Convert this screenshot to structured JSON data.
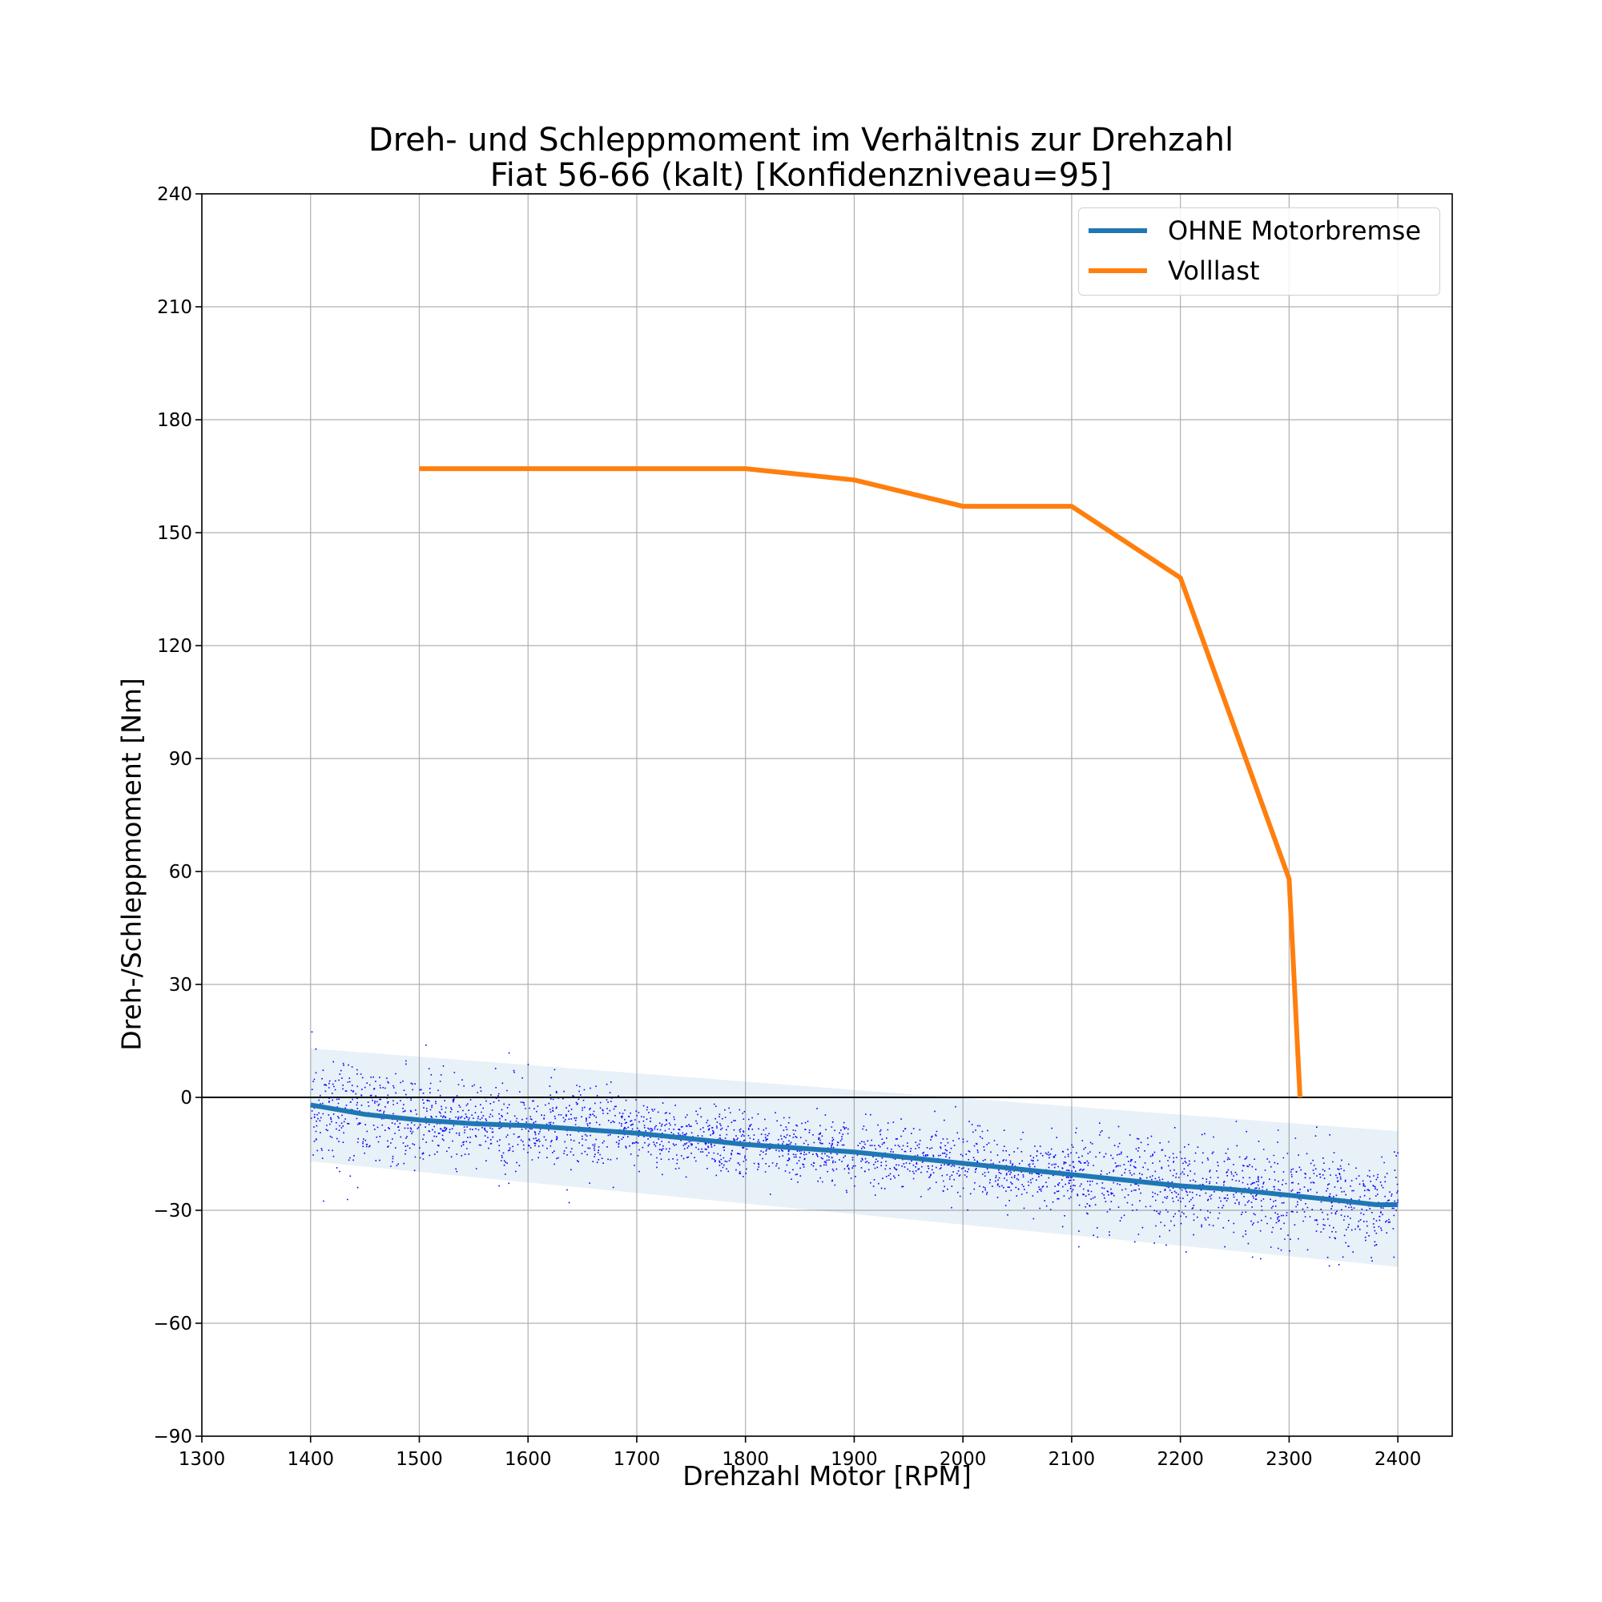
{
  "chart_data": {
    "type": "line",
    "title": [
      "Dreh- und Schleppmoment im Verhältnis zur Drehzahl",
      "Fiat 56-66 (kalt) [Konfidenzniveau=95]"
    ],
    "xlabel": "Drehzahl Motor [RPM]",
    "ylabel": "Dreh-/Schleppmoment [Nm]",
    "xlim": [
      1300,
      2450
    ],
    "ylim": [
      -90,
      240
    ],
    "xticks": [
      1300,
      1400,
      1500,
      1600,
      1700,
      1800,
      1900,
      2000,
      2100,
      2200,
      2300,
      2400
    ],
    "yticks": [
      -90,
      -60,
      -30,
      0,
      30,
      60,
      90,
      120,
      150,
      180,
      210,
      240
    ],
    "ytick_labels": [
      "−90",
      "−60",
      "−30",
      "0",
      "30",
      "60",
      "90",
      "120",
      "150",
      "180",
      "210",
      "240"
    ],
    "grid": true,
    "legend_position": "top-right",
    "zero_line": true,
    "series": [
      {
        "name": "OHNE Motorbremse",
        "color": "#1f77b4",
        "x": [
          1400,
          1420,
          1450,
          1500,
          1550,
          1600,
          1650,
          1700,
          1750,
          1800,
          1850,
          1900,
          1950,
          2000,
          2050,
          2100,
          2150,
          2200,
          2250,
          2300,
          2350,
          2380,
          2400
        ],
        "y": [
          -2,
          -3,
          -4.5,
          -6,
          -7,
          -7.5,
          -8.5,
          -9.5,
          -11,
          -12.5,
          -13.5,
          -14.5,
          -16,
          -17.5,
          -19,
          -20.5,
          -22,
          -23.5,
          -24.5,
          -26,
          -27.5,
          -28.5,
          -28.5
        ]
      },
      {
        "name": "Volllast",
        "color": "#ff7f0e",
        "x": [
          1500,
          1600,
          1700,
          1800,
          1900,
          2000,
          2100,
          2200,
          2300,
          2310
        ],
        "y": [
          167,
          167,
          167,
          167,
          164,
          157,
          157,
          138,
          58,
          0
        ]
      }
    ],
    "confidence_band": {
      "color": "#1f77b4",
      "opacity": 0.1,
      "x": [
        1400,
        2400
      ],
      "upper": [
        13,
        -9
      ],
      "lower": [
        -17,
        -45
      ]
    },
    "scatter": {
      "color": "#0000ff",
      "x_range": [
        1400,
        2400
      ],
      "points_approx": 3000,
      "note_spread_left": 12,
      "note_spread_mid": 7,
      "note_spread_right": 11
    }
  }
}
